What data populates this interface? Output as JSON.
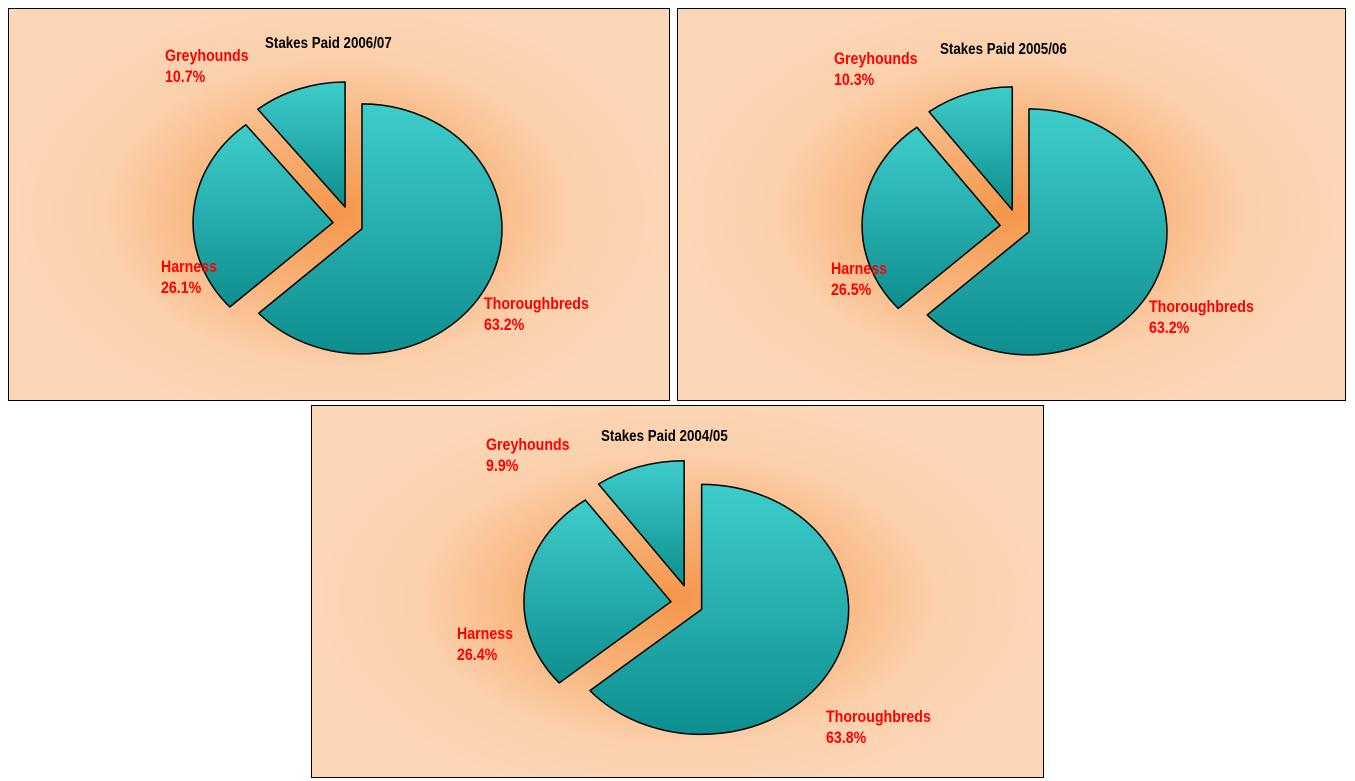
{
  "colors": {
    "slice_top": "#3ecdcb",
    "slice_bottom": "#0e8e8f",
    "label": "#ff0000",
    "title": "#000000"
  },
  "chart_data": [
    {
      "type": "pie",
      "title": "Stakes Paid 2006/07",
      "slices": [
        {
          "label": "Thoroughbreds",
          "value": 63.2,
          "display": "63.2%"
        },
        {
          "label": "Harness",
          "value": 26.1,
          "display": "26.1%"
        },
        {
          "label": "Greyhounds",
          "value": 10.7,
          "display": "10.7%"
        }
      ],
      "exploded": true
    },
    {
      "type": "pie",
      "title": "Stakes Paid 2005/06",
      "slices": [
        {
          "label": "Thoroughbreds",
          "value": 63.2,
          "display": "63.2%"
        },
        {
          "label": "Harness",
          "value": 26.5,
          "display": "26.5%"
        },
        {
          "label": "Greyhounds",
          "value": 10.3,
          "display": "10.3%"
        }
      ],
      "exploded": true
    },
    {
      "type": "pie",
      "title": "Stakes Paid 2004/05",
      "slices": [
        {
          "label": "Thoroughbreds",
          "value": 63.8,
          "display": "63.8%"
        },
        {
          "label": "Harness",
          "value": 26.4,
          "display": "26.4%"
        },
        {
          "label": "Greyhounds",
          "value": 9.9,
          "display": "9.9%"
        }
      ],
      "exploded": true
    }
  ]
}
